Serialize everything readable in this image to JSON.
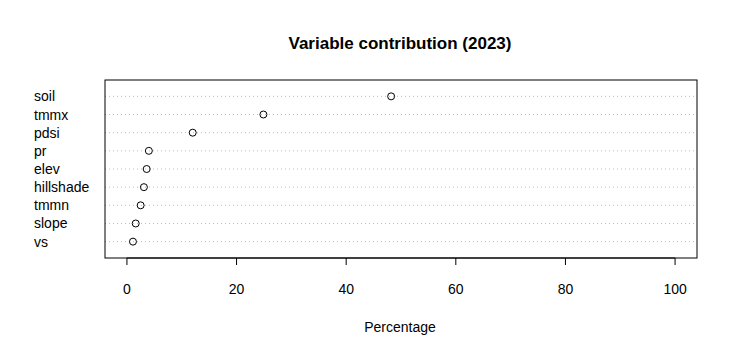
{
  "chart_data": {
    "type": "dot",
    "title": "Variable contribution (2023)",
    "x_label": "Percentage",
    "orientation": "horizontal",
    "categories": [
      "soil",
      "tmmx",
      "pdsi",
      "pr",
      "elev",
      "hillshade",
      "tmmn",
      "slope",
      "vs"
    ],
    "values": [
      48.2,
      24.9,
      12.0,
      4.0,
      3.6,
      3.1,
      2.5,
      1.6,
      1.1
    ],
    "color": "#000000",
    "marker": "circle",
    "xlim": [
      -4,
      104
    ],
    "xticks": [
      0,
      20,
      40,
      60,
      80,
      100
    ],
    "grid": true
  }
}
